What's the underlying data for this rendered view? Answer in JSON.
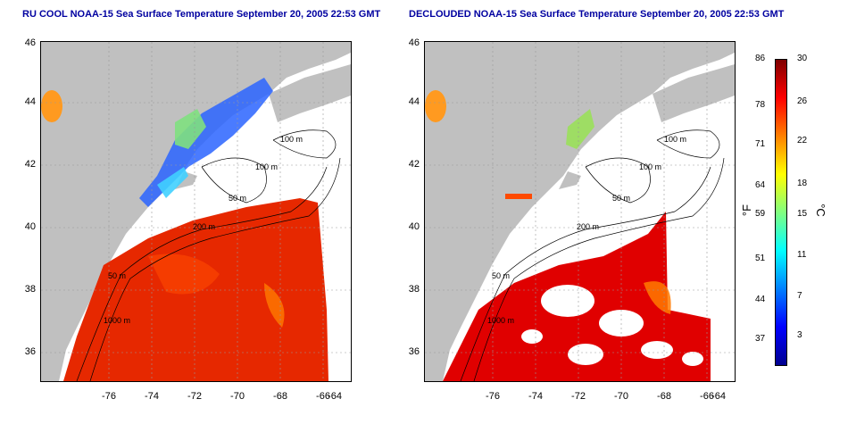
{
  "left_panel": {
    "title": "RU COOL NOAA-15 Sea Surface Temperature September 20, 2005 22:53 GMT",
    "y_ticks": [
      "46",
      "44",
      "42",
      "40",
      "38",
      "36"
    ],
    "x_ticks": [
      "-76",
      "-74",
      "-72",
      "-70",
      "-68",
      "-66",
      "-64"
    ],
    "contour_labels": [
      "100 m",
      "100 m",
      "50 m",
      "200 m",
      "50 m",
      "1000 m"
    ]
  },
  "right_panel": {
    "title": "DECLOUDED NOAA-15 Sea Surface Temperature September 20, 2005 22:53 GMT",
    "y_ticks": [
      "46",
      "44",
      "42",
      "40",
      "38",
      "36"
    ],
    "x_ticks": [
      "-76",
      "-74",
      "-72",
      "-70",
      "-68",
      "-66",
      "-64"
    ],
    "contour_labels": [
      "100 m",
      "100 m",
      "50 m",
      "200 m",
      "50 m",
      "1000 m"
    ]
  },
  "colorbar": {
    "fahrenheit_ticks": [
      "86",
      "78",
      "71",
      "64",
      "59",
      "51",
      "44",
      "37"
    ],
    "celsius_ticks": [
      "30",
      "26",
      "22",
      "18",
      "15",
      "11",
      "7",
      "3"
    ],
    "fahrenheit_unit": "°F",
    "celsius_unit": "°C",
    "colors": [
      "#7f0000",
      "#ff0000",
      "#ff8000",
      "#ffff00",
      "#80ff80",
      "#00ffff",
      "#0080ff",
      "#0000ff",
      "#00008f"
    ]
  },
  "colors": {
    "land": "#c0c0c0",
    "water_no_data": "#ffffff",
    "warm_sst": "#e62800",
    "cool_sst": "#1a4bff",
    "title": "#0000a0"
  }
}
